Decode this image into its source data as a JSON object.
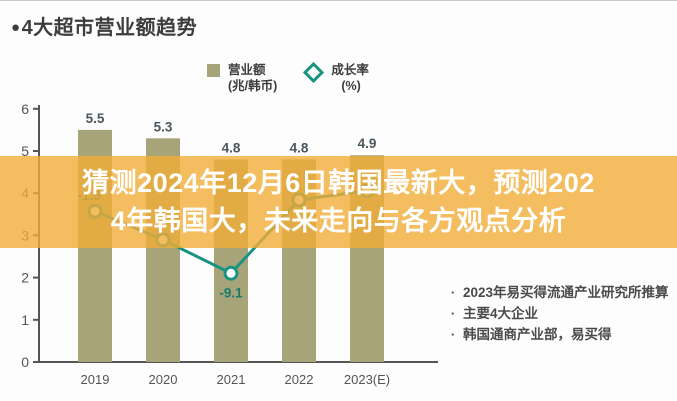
{
  "page": {
    "title_bullet": "●",
    "title": "4大超市营业额趋势"
  },
  "banner": {
    "lines": [
      "猜测2024年12月6日韩国最新大，预测202",
      "4年韩国大，未来走向与各方观点分析"
    ],
    "bg_color": "#f1ad37",
    "text_color": "#ffffff"
  },
  "legend": {
    "items": [
      {
        "swatch": "square",
        "color": "#a8a47a",
        "line1": "营业额",
        "line2": "(兆/韩币)"
      },
      {
        "swatch": "diamond",
        "color": "#1b9382",
        "line1": "成长率",
        "line2": "(%)"
      }
    ]
  },
  "notes": [
    "2023年易买得流通产业研究所推算",
    "主要4大企业",
    "韩国通商产业部，易买得"
  ],
  "chart_data": {
    "type": "bar",
    "categories": [
      "2019",
      "2020",
      "2021",
      "2022",
      "2023(E)"
    ],
    "series": [
      {
        "name": "营业额(兆/韩币)",
        "type": "bar",
        "color": "#a8a47a",
        "values": [
          5.5,
          5.3,
          4.8,
          4.8,
          4.9
        ],
        "labels": [
          "5.5",
          "5.3",
          "4.8",
          "4.8",
          "4.9"
        ]
      },
      {
        "name": "成长率(%)",
        "type": "line",
        "color": "#1b9382",
        "label_color": "#177a6b",
        "values": [
          -1.5,
          -5.0,
          -9.1,
          -0.1,
          1.0
        ],
        "labels": [
          "-1.5",
          "",
          "-9.1",
          "",
          ""
        ]
      }
    ],
    "title": "4大超市营业额趋势",
    "xlabel": "",
    "ylabel": "",
    "ylim": [
      0,
      6
    ],
    "yticks": [
      0,
      1,
      2,
      3,
      4,
      5,
      6
    ],
    "grid": false,
    "legend_position": "top"
  }
}
